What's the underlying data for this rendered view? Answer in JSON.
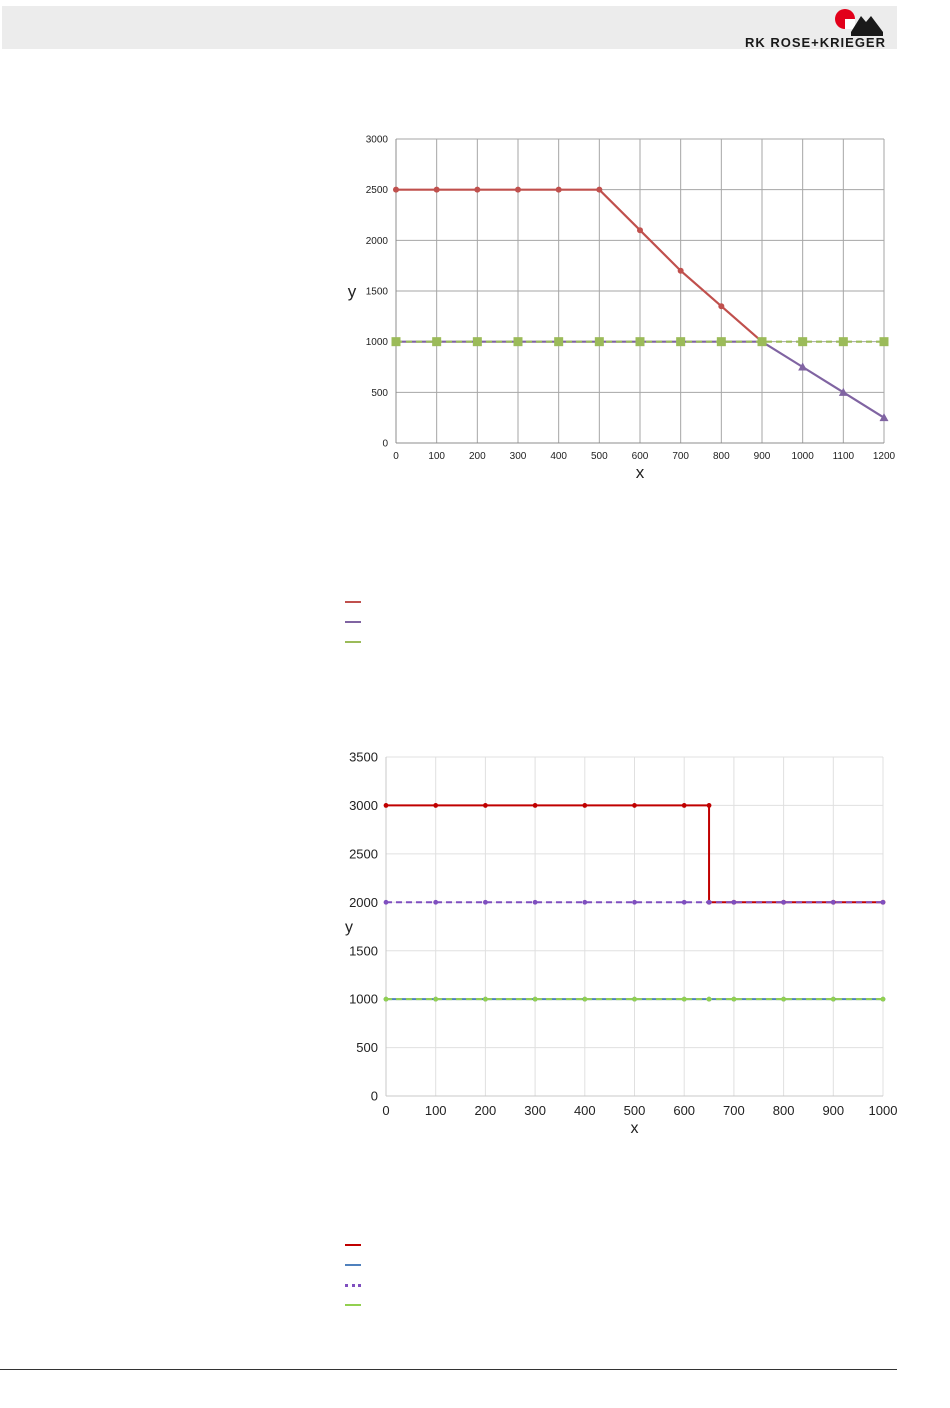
{
  "header": {
    "logo_text": "RK ROSE+KRIEGER",
    "colors": {
      "band": "#ececec",
      "logo_red": "#e2001a",
      "logo_dark": "#1a1a1a"
    }
  },
  "chart_data": [
    {
      "type": "line",
      "title": "",
      "xlabel": "x",
      "ylabel": "y",
      "xlim": [
        0,
        1200
      ],
      "ylim": [
        0,
        3000
      ],
      "x_ticks": [
        0,
        100,
        200,
        300,
        400,
        500,
        600,
        700,
        800,
        900,
        1000,
        1100,
        1200
      ],
      "y_ticks": [
        0,
        500,
        1000,
        1500,
        2000,
        2500,
        3000
      ],
      "grid": true,
      "series": [
        {
          "color": "#c0504d",
          "dash": "solid",
          "marker": "circle",
          "x": [
            0,
            100,
            200,
            300,
            400,
            500,
            600,
            700,
            800,
            900
          ],
          "y": [
            2500,
            2500,
            2500,
            2500,
            2500,
            2500,
            2100,
            1700,
            1350,
            1000
          ]
        },
        {
          "color": "#8064a2",
          "dash": "solid",
          "marker": "triangle",
          "x": [
            0,
            100,
            200,
            300,
            400,
            500,
            600,
            700,
            800,
            900,
            1000,
            1100,
            1200
          ],
          "y": [
            1000,
            1000,
            1000,
            1000,
            1000,
            1000,
            1000,
            1000,
            1000,
            1000,
            750,
            500,
            250
          ]
        },
        {
          "color": "#9bbb59",
          "dash": "dashed",
          "marker": "square",
          "x": [
            0,
            100,
            200,
            300,
            400,
            500,
            600,
            700,
            800,
            900,
            1000,
            1100,
            1200
          ],
          "y": [
            1000,
            1000,
            1000,
            1000,
            1000,
            1000,
            1000,
            1000,
            1000,
            1000,
            1000,
            1000,
            1000
          ]
        }
      ],
      "legend": [
        {
          "color": "#c0504d",
          "dash": "solid"
        },
        {
          "color": "#8064a2",
          "dash": "solid"
        },
        {
          "color": "#9bbb59",
          "dash": "solid"
        }
      ]
    },
    {
      "type": "line",
      "title": "",
      "xlabel": "x",
      "ylabel": "y",
      "xlim": [
        0,
        1000
      ],
      "ylim": [
        0,
        3500
      ],
      "x_ticks": [
        0,
        100,
        200,
        300,
        400,
        500,
        600,
        700,
        800,
        900,
        1000
      ],
      "y_ticks": [
        0,
        500,
        1000,
        1500,
        2000,
        2500,
        3000,
        3500
      ],
      "grid": true,
      "series": [
        {
          "color": "#c00000",
          "dash": "solid",
          "marker": "circle",
          "x": [
            0,
            100,
            200,
            300,
            400,
            500,
            600,
            650,
            650,
            700,
            800,
            900,
            1000
          ],
          "y": [
            3000,
            3000,
            3000,
            3000,
            3000,
            3000,
            3000,
            3000,
            2000,
            2000,
            2000,
            2000,
            2000
          ]
        },
        {
          "color": "#4f81bd",
          "dash": "solid",
          "marker": "circle",
          "x": [
            0,
            100,
            200,
            300,
            400,
            500,
            600,
            650,
            700,
            800,
            900,
            1000
          ],
          "y": [
            1000,
            1000,
            1000,
            1000,
            1000,
            1000,
            1000,
            1000,
            1000,
            1000,
            1000,
            1000
          ]
        },
        {
          "color": "#7f4fbf",
          "dash": "dashed",
          "marker": "circle",
          "x": [
            0,
            100,
            200,
            300,
            400,
            500,
            600,
            650,
            700,
            800,
            900,
            1000
          ],
          "y": [
            2000,
            2000,
            2000,
            2000,
            2000,
            2000,
            2000,
            2000,
            2000,
            2000,
            2000,
            2000
          ]
        },
        {
          "color": "#92d050",
          "dash": "dashed",
          "marker": "circle",
          "x": [
            0,
            100,
            200,
            300,
            400,
            500,
            600,
            650,
            700,
            800,
            900,
            1000
          ],
          "y": [
            1000,
            1000,
            1000,
            1000,
            1000,
            1000,
            1000,
            1000,
            1000,
            1000,
            1000,
            1000
          ]
        }
      ],
      "legend": [
        {
          "color": "#c00000",
          "dash": "solid"
        },
        {
          "color": "#4f81bd",
          "dash": "solid"
        },
        {
          "color": "#7f4fbf",
          "dash": "dotted"
        },
        {
          "color": "#92d050",
          "dash": "solid"
        }
      ]
    }
  ]
}
